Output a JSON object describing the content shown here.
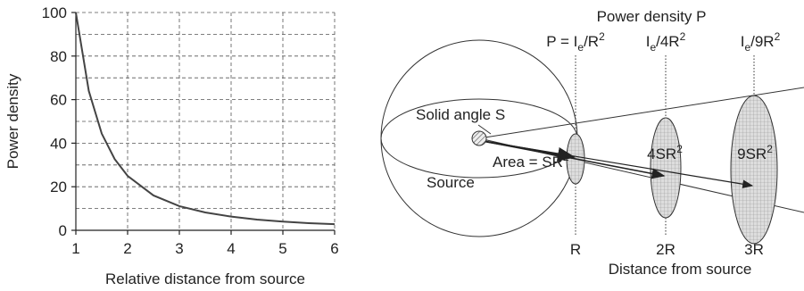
{
  "chart_data": {
    "type": "line",
    "x_label": "Relative distance from source",
    "y_label": "Power density",
    "x": [
      1,
      1.25,
      1.5,
      1.75,
      2,
      2.5,
      3,
      3.5,
      4,
      4.5,
      5,
      5.5,
      6
    ],
    "values": [
      100,
      64,
      44.4,
      32.7,
      25,
      16,
      11.1,
      8.2,
      6.3,
      4.9,
      4,
      3.3,
      2.8
    ],
    "color": "#444444",
    "xlim": [
      1,
      6
    ],
    "xticks": [
      1,
      2,
      3,
      4,
      5,
      6
    ],
    "ylim": [
      0,
      100
    ],
    "yticks": [
      0,
      20,
      40,
      60,
      80,
      100
    ],
    "yminorticks": [
      10,
      30,
      50,
      70,
      90
    ],
    "grid": true
  },
  "diagram": {
    "title": "Power density P",
    "intensity_labels": [
      [
        "P = I",
        "e",
        "/R",
        "2"
      ],
      [
        "I",
        "e",
        "/4R",
        "2"
      ],
      [
        "I",
        "e",
        "/9R",
        "2"
      ]
    ],
    "solid_angle": "Solid angle S",
    "area": [
      "Area = SR",
      "2"
    ],
    "source": "Source",
    "area_labels": [
      [
        "4SR",
        "2"
      ],
      [
        "9SR",
        "2"
      ]
    ],
    "distance_labels": [
      "R",
      "2R",
      "3R"
    ],
    "x_axis": "Distance from source"
  }
}
